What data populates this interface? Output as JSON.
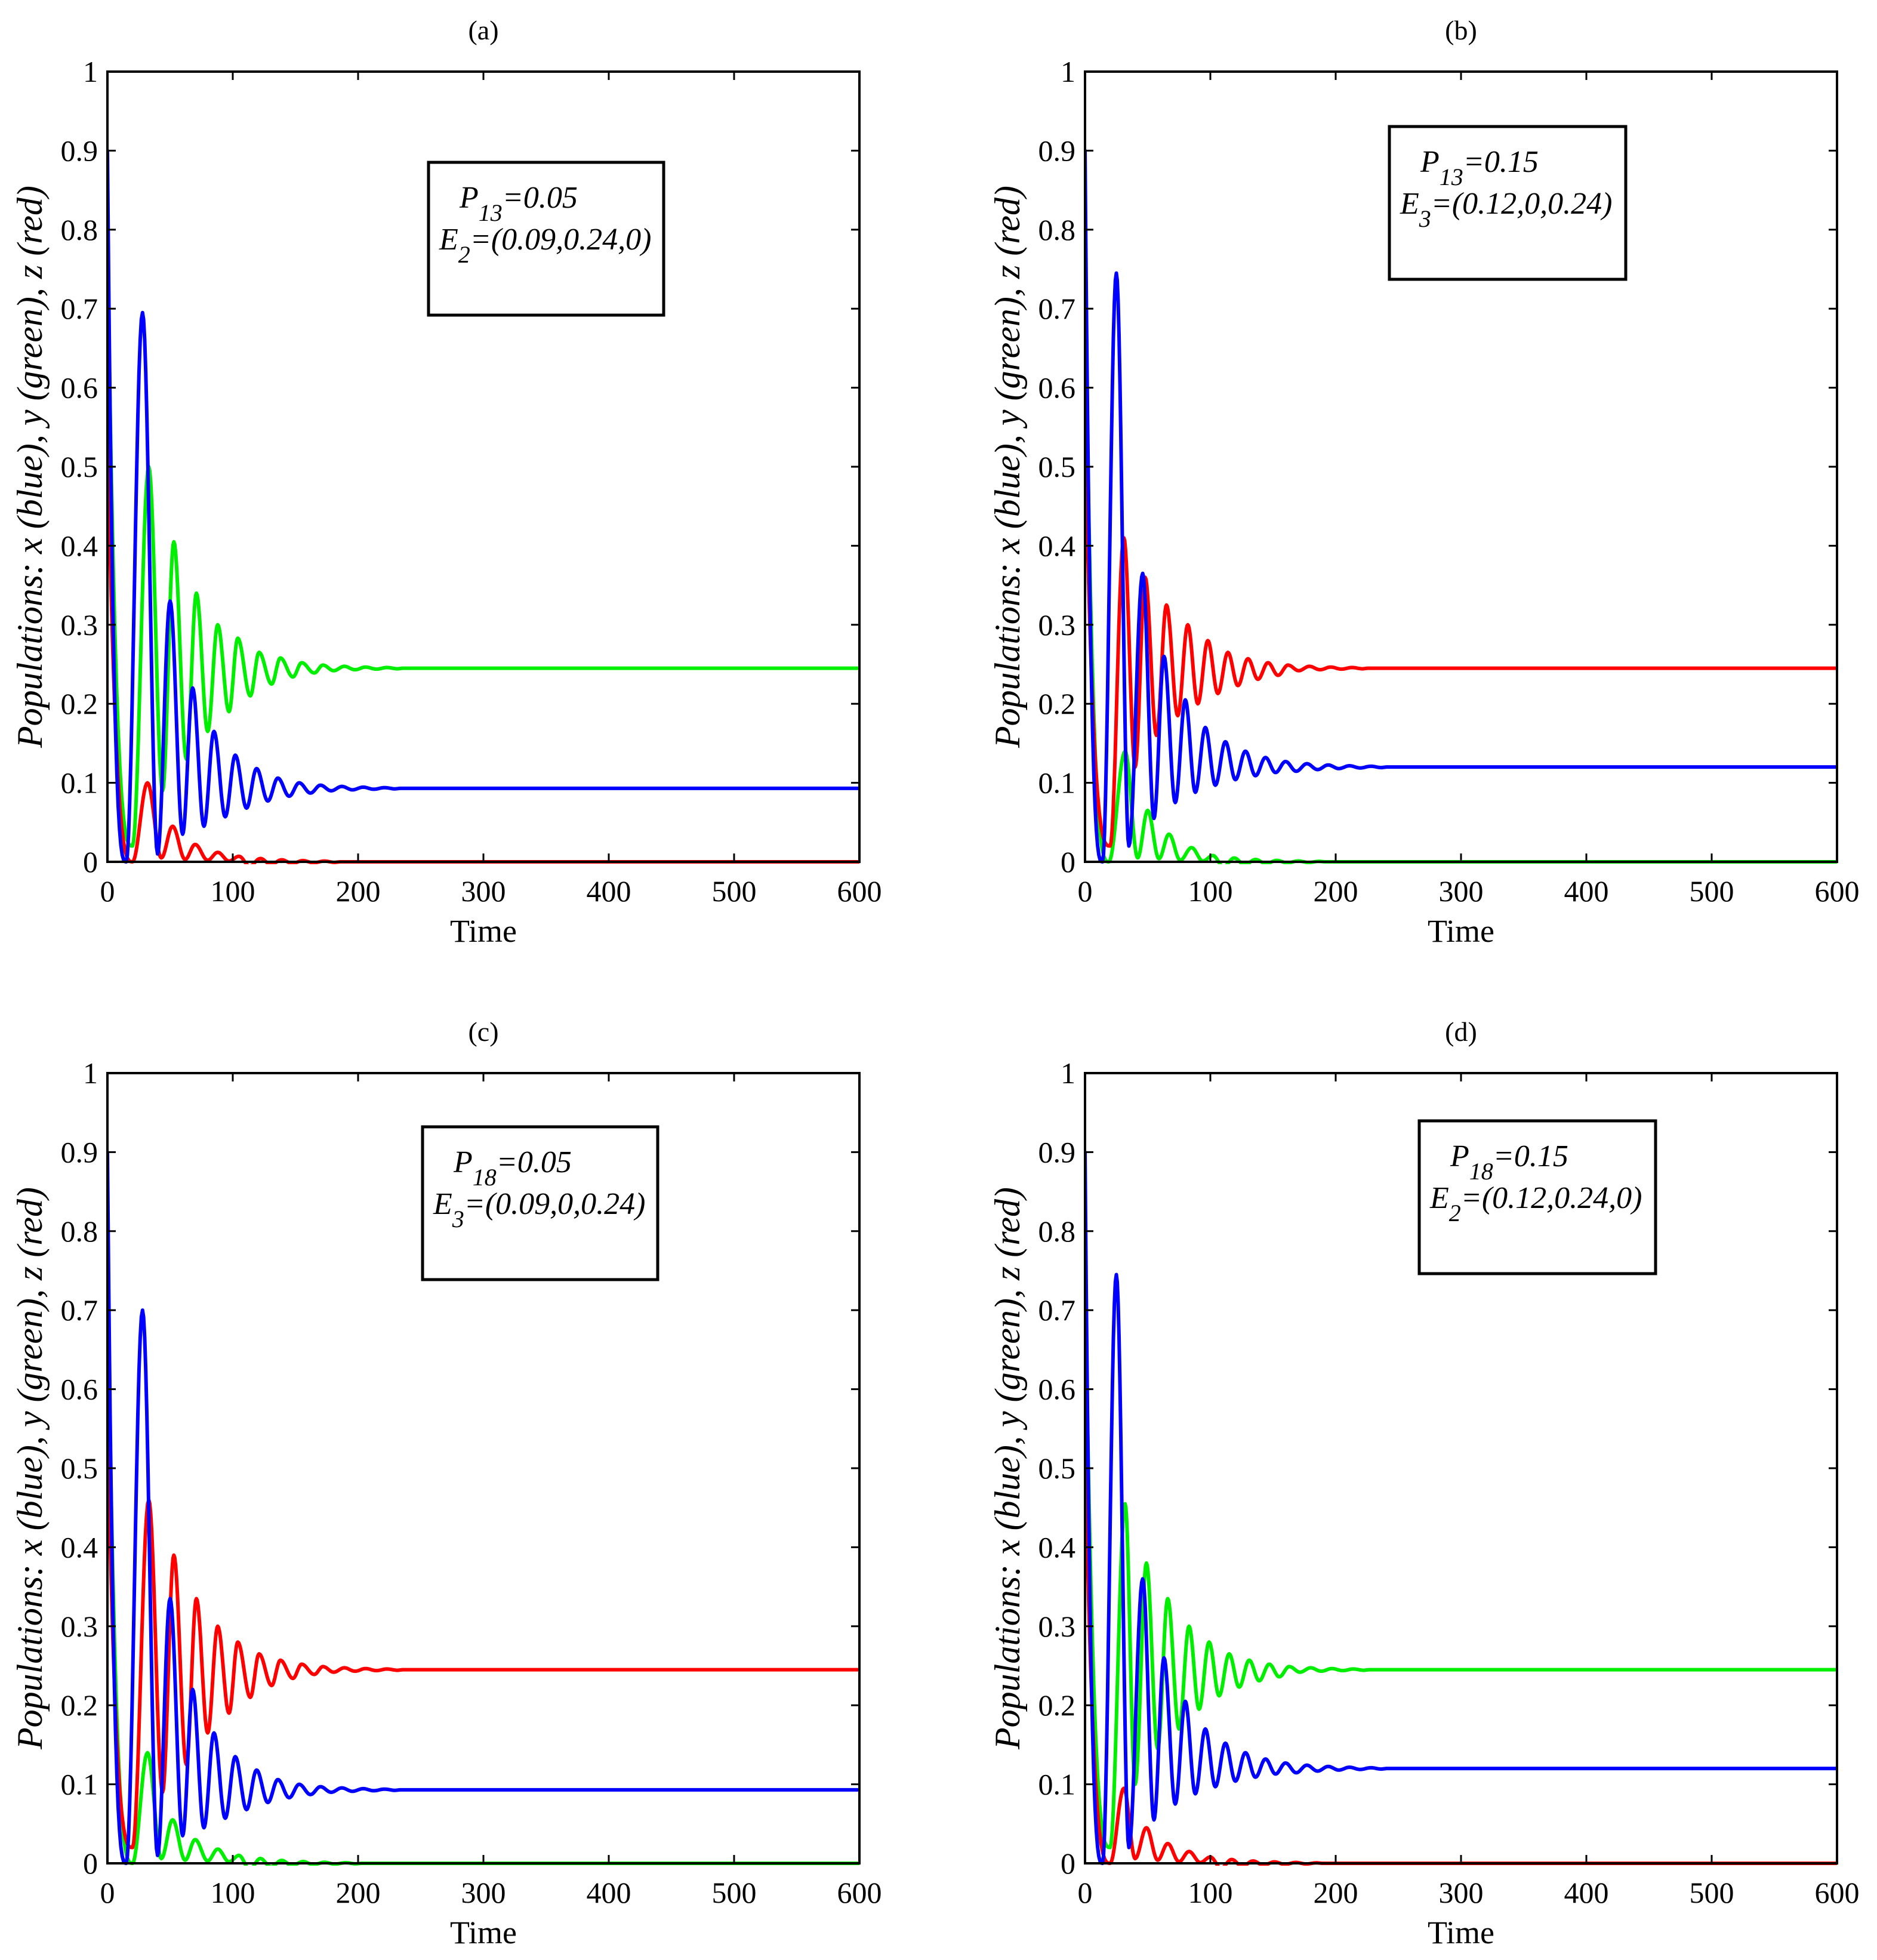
{
  "figure": {
    "xlabel": "Time",
    "ylabel": "Populations: x (blue), y (green), z (red)",
    "colors": {
      "x": "#0000ff",
      "y": "#00ee00",
      "z": "#ff0000",
      "axis": "#000000"
    }
  },
  "chart_data": [
    {
      "type": "line",
      "panel_label": "(a)",
      "xlim": [
        0,
        600
      ],
      "ylim": [
        0,
        1
      ],
      "xticks": [
        "0",
        "100",
        "200",
        "300",
        "400",
        "500",
        "600"
      ],
      "yticks": [
        "0",
        "0.1",
        "0.2",
        "0.3",
        "0.4",
        "0.5",
        "0.6",
        "0.7",
        "0.8",
        "0.9",
        "1"
      ],
      "xlabel": "Time",
      "ylabel": "Populations: x (blue), y (green), z (red)",
      "annotation": {
        "param_symbol": "P",
        "param_sub": "13",
        "param_value": "=0.05",
        "eq_symbol": "E",
        "eq_sub": "2",
        "eq_value": "=(0.09,0.24,0)"
      },
      "series": [
        {
          "name": "x",
          "color": "#0000ff",
          "x0": 0.9,
          "xe": 0.093,
          "peaks": [
            [
              28,
              0.695
            ],
            [
              50,
              0.33
            ],
            [
              68,
              0.22
            ],
            [
              85,
              0.165
            ],
            [
              102,
              0.135
            ],
            [
              119,
              0.118
            ],
            [
              136,
              0.106
            ],
            [
              153,
              0.1
            ],
            [
              170,
              0.097
            ]
          ],
          "troughs": [
            [
              15,
              0
            ],
            [
              40,
              0.01
            ],
            [
              60,
              0.035
            ],
            [
              77,
              0.045
            ],
            [
              94,
              0.057
            ],
            [
              111,
              0.068
            ],
            [
              128,
              0.077
            ],
            [
              145,
              0.083
            ],
            [
              162,
              0.087
            ]
          ]
        },
        {
          "name": "y",
          "color": "#00ee00",
          "x0": 0.8,
          "xe": 0.245,
          "peaks": [
            [
              33,
              0.5
            ],
            [
              53,
              0.405
            ],
            [
              71,
              0.34
            ],
            [
              88,
              0.3
            ],
            [
              104,
              0.283
            ],
            [
              121,
              0.265
            ],
            [
              138,
              0.258
            ],
            [
              155,
              0.252
            ],
            [
              172,
              0.249
            ]
          ],
          "troughs": [
            [
              20,
              0.02
            ],
            [
              44,
              0.09
            ],
            [
              63,
              0.13
            ],
            [
              80,
              0.165
            ],
            [
              97,
              0.19
            ],
            [
              114,
              0.21
            ],
            [
              131,
              0.225
            ],
            [
              148,
              0.234
            ],
            [
              165,
              0.239
            ]
          ]
        },
        {
          "name": "z",
          "color": "#ff0000",
          "x0": 0.55,
          "xe": 0.0,
          "peaks": [
            [
              32,
              0.1
            ],
            [
              52,
              0.045
            ],
            [
              70,
              0.022
            ],
            [
              88,
              0.012
            ],
            [
              105,
              0.007
            ]
          ],
          "troughs": [
            [
              20,
              0.0
            ],
            [
              43,
              0.005
            ],
            [
              62,
              0.003
            ],
            [
              80,
              0.002
            ],
            [
              97,
              0.001
            ]
          ]
        }
      ]
    },
    {
      "type": "line",
      "panel_label": "(b)",
      "xlim": [
        0,
        600
      ],
      "ylim": [
        0,
        1
      ],
      "xticks": [
        "0",
        "100",
        "200",
        "300",
        "400",
        "500",
        "600"
      ],
      "yticks": [
        "0",
        "0.1",
        "0.2",
        "0.3",
        "0.4",
        "0.5",
        "0.6",
        "0.7",
        "0.8",
        "0.9",
        "1"
      ],
      "xlabel": "Time",
      "ylabel": "Populations: x (blue), y (green), z (red)",
      "annotation": {
        "param_symbol": "P",
        "param_sub": "13",
        "param_value": "=0.15",
        "eq_symbol": "E",
        "eq_sub": "3",
        "eq_value": "=(0.12,0,0.24)"
      },
      "series": [
        {
          "name": "x",
          "color": "#0000ff",
          "x0": 0.9,
          "xe": 0.12,
          "peaks": [
            [
              25,
              0.745
            ],
            [
              46,
              0.365
            ],
            [
              63,
              0.26
            ],
            [
              80,
              0.205
            ],
            [
              96,
              0.17
            ],
            [
              112,
              0.152
            ],
            [
              128,
              0.14
            ],
            [
              144,
              0.132
            ],
            [
              160,
              0.127
            ]
          ],
          "troughs": [
            [
              14,
              0
            ],
            [
              35,
              0.02
            ],
            [
              55,
              0.055
            ],
            [
              72,
              0.075
            ],
            [
              88,
              0.088
            ],
            [
              104,
              0.097
            ],
            [
              120,
              0.104
            ],
            [
              136,
              0.109
            ],
            [
              152,
              0.113
            ]
          ]
        },
        {
          "name": "y",
          "color": "#00ee00",
          "x0": 0.74,
          "xe": 0.0,
          "peaks": [
            [
              32,
              0.14
            ],
            [
              50,
              0.065
            ],
            [
              67,
              0.035
            ],
            [
              85,
              0.018
            ],
            [
              102,
              0.008
            ]
          ],
          "troughs": [
            [
              19,
              0.0
            ],
            [
              42,
              0.005
            ],
            [
              59,
              0.004
            ],
            [
              76,
              0.002
            ],
            [
              94,
              0.001
            ]
          ]
        },
        {
          "name": "z",
          "color": "#ff0000",
          "x0": 0.55,
          "xe": 0.245,
          "peaks": [
            [
              31,
              0.41
            ],
            [
              48,
              0.36
            ],
            [
              65,
              0.325
            ],
            [
              82,
              0.3
            ],
            [
              98,
              0.28
            ],
            [
              114,
              0.265
            ],
            [
              130,
              0.257
            ],
            [
              146,
              0.252
            ],
            [
              162,
              0.249
            ]
          ],
          "troughs": [
            [
              20,
              0.02
            ],
            [
              40,
              0.12
            ],
            [
              57,
              0.16
            ],
            [
              74,
              0.185
            ],
            [
              90,
              0.2
            ],
            [
              106,
              0.213
            ],
            [
              122,
              0.223
            ],
            [
              138,
              0.231
            ],
            [
              154,
              0.236
            ]
          ]
        }
      ]
    },
    {
      "type": "line",
      "panel_label": "(c)",
      "xlim": [
        0,
        600
      ],
      "ylim": [
        0,
        1
      ],
      "xticks": [
        "0",
        "100",
        "200",
        "300",
        "400",
        "500",
        "600"
      ],
      "yticks": [
        "0",
        "0.1",
        "0.2",
        "0.3",
        "0.4",
        "0.5",
        "0.6",
        "0.7",
        "0.8",
        "0.9",
        "1"
      ],
      "xlabel": "Time",
      "ylabel": "Populations: x (blue), y (green), z (red)",
      "annotation": {
        "param_symbol": "P",
        "param_sub": "18",
        "param_value": "=0.05",
        "eq_symbol": "E",
        "eq_sub": "3",
        "eq_value": "=(0.09,0,0.24)"
      },
      "series": [
        {
          "name": "x",
          "color": "#0000ff",
          "x0": 0.9,
          "xe": 0.093,
          "peaks": [
            [
              28,
              0.7
            ],
            [
              50,
              0.335
            ],
            [
              68,
              0.22
            ],
            [
              85,
              0.165
            ],
            [
              102,
              0.135
            ],
            [
              119,
              0.118
            ],
            [
              136,
              0.106
            ],
            [
              153,
              0.1
            ],
            [
              170,
              0.097
            ]
          ],
          "troughs": [
            [
              15,
              0
            ],
            [
              40,
              0.01
            ],
            [
              60,
              0.035
            ],
            [
              77,
              0.045
            ],
            [
              94,
              0.057
            ],
            [
              111,
              0.068
            ],
            [
              128,
              0.077
            ],
            [
              145,
              0.083
            ],
            [
              162,
              0.087
            ]
          ]
        },
        {
          "name": "y",
          "color": "#00ee00",
          "x0": 0.76,
          "xe": 0.0,
          "peaks": [
            [
              32,
              0.14
            ],
            [
              52,
              0.055
            ],
            [
              70,
              0.03
            ],
            [
              88,
              0.018
            ],
            [
              105,
              0.01
            ]
          ],
          "troughs": [
            [
              20,
              0.0
            ],
            [
              43,
              0.006
            ],
            [
              62,
              0.004
            ],
            [
              80,
              0.003
            ],
            [
              97,
              0.002
            ]
          ]
        },
        {
          "name": "z",
          "color": "#ff0000",
          "x0": 0.57,
          "xe": 0.245,
          "peaks": [
            [
              33,
              0.46
            ],
            [
              53,
              0.39
            ],
            [
              71,
              0.335
            ],
            [
              88,
              0.3
            ],
            [
              104,
              0.28
            ],
            [
              121,
              0.265
            ],
            [
              138,
              0.257
            ],
            [
              155,
              0.252
            ],
            [
              172,
              0.249
            ]
          ],
          "troughs": [
            [
              20,
              0.02
            ],
            [
              44,
              0.09
            ],
            [
              63,
              0.125
            ],
            [
              80,
              0.165
            ],
            [
              97,
              0.19
            ],
            [
              114,
              0.21
            ],
            [
              131,
              0.225
            ],
            [
              148,
              0.234
            ],
            [
              165,
              0.239
            ]
          ]
        }
      ]
    },
    {
      "type": "line",
      "panel_label": "(d)",
      "xlim": [
        0,
        600
      ],
      "ylim": [
        0,
        1
      ],
      "xticks": [
        "0",
        "100",
        "200",
        "300",
        "400",
        "500",
        "600"
      ],
      "yticks": [
        "0",
        "0.1",
        "0.2",
        "0.3",
        "0.4",
        "0.5",
        "0.6",
        "0.7",
        "0.8",
        "0.9",
        "1"
      ],
      "xlabel": "Time",
      "ylabel": "Populations: x (blue), y (green), z (red)",
      "annotation": {
        "param_symbol": "P",
        "param_sub": "18",
        "param_value": "=0.15",
        "eq_symbol": "E",
        "eq_sub": "2",
        "eq_value": "=(0.12,0.24,0)"
      },
      "series": [
        {
          "name": "x",
          "color": "#0000ff",
          "x0": 0.9,
          "xe": 0.12,
          "peaks": [
            [
              25,
              0.745
            ],
            [
              46,
              0.36
            ],
            [
              63,
              0.26
            ],
            [
              80,
              0.205
            ],
            [
              96,
              0.17
            ],
            [
              112,
              0.152
            ],
            [
              128,
              0.14
            ],
            [
              144,
              0.132
            ],
            [
              160,
              0.127
            ]
          ],
          "troughs": [
            [
              14,
              0
            ],
            [
              35,
              0.02
            ],
            [
              55,
              0.055
            ],
            [
              72,
              0.075
            ],
            [
              88,
              0.088
            ],
            [
              104,
              0.097
            ],
            [
              120,
              0.104
            ],
            [
              136,
              0.109
            ],
            [
              152,
              0.113
            ]
          ]
        },
        {
          "name": "y",
          "color": "#00ee00",
          "x0": 0.76,
          "xe": 0.245,
          "peaks": [
            [
              32,
              0.455
            ],
            [
              49,
              0.38
            ],
            [
              66,
              0.335
            ],
            [
              83,
              0.3
            ],
            [
              99,
              0.28
            ],
            [
              115,
              0.265
            ],
            [
              131,
              0.257
            ],
            [
              147,
              0.252
            ],
            [
              163,
              0.249
            ]
          ],
          "troughs": [
            [
              20,
              0.02
            ],
            [
              40,
              0.1
            ],
            [
              58,
              0.145
            ],
            [
              75,
              0.17
            ],
            [
              91,
              0.195
            ],
            [
              107,
              0.212
            ],
            [
              123,
              0.223
            ],
            [
              139,
              0.231
            ],
            [
              155,
              0.236
            ]
          ]
        },
        {
          "name": "z",
          "color": "#ff0000",
          "x0": 0.53,
          "xe": 0.0,
          "peaks": [
            [
              31,
              0.095
            ],
            [
              49,
              0.045
            ],
            [
              66,
              0.025
            ],
            [
              83,
              0.015
            ],
            [
              100,
              0.008
            ]
          ],
          "troughs": [
            [
              20,
              0.0
            ],
            [
              40,
              0.006
            ],
            [
              58,
              0.004
            ],
            [
              75,
              0.002
            ],
            [
              92,
              0.001
            ]
          ]
        }
      ]
    }
  ]
}
